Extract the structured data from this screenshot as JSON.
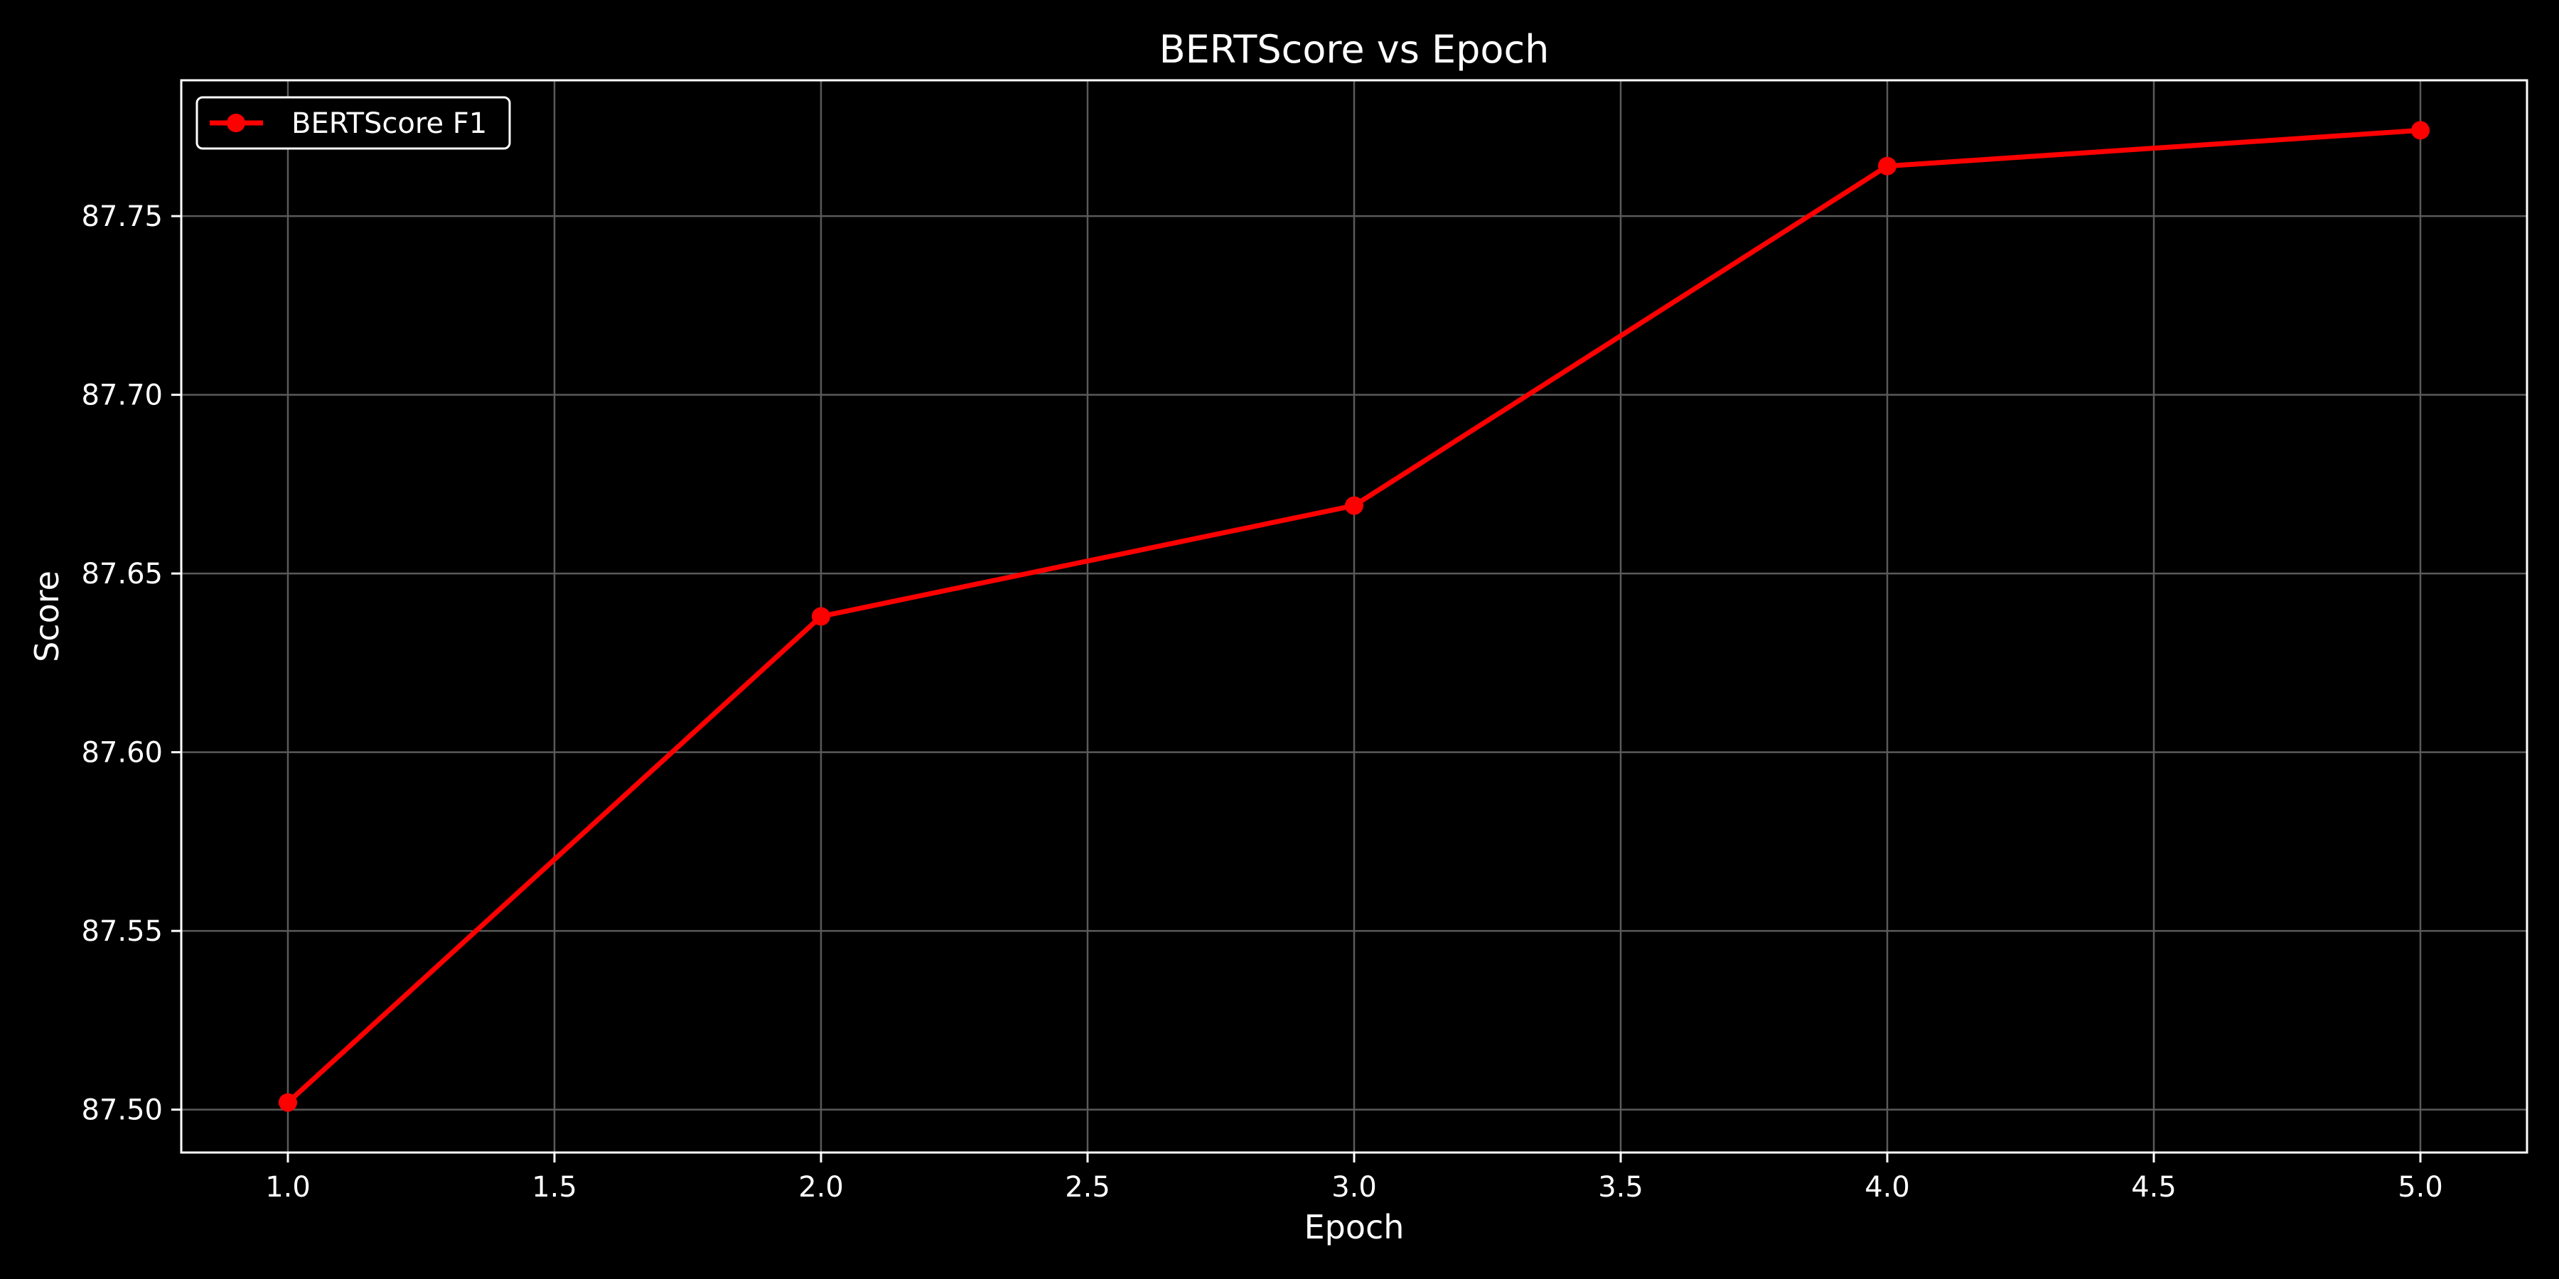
{
  "chart_data": {
    "type": "line",
    "title": "BERTScore vs Epoch",
    "xlabel": "Epoch",
    "ylabel": "Score",
    "xlim": [
      0.8,
      5.2
    ],
    "ylim": [
      87.488,
      87.788
    ],
    "x_ticks": [
      1.0,
      1.5,
      2.0,
      2.5,
      3.0,
      3.5,
      4.0,
      4.5,
      5.0
    ],
    "x_tick_labels": [
      "1.0",
      "1.5",
      "2.0",
      "2.5",
      "3.0",
      "3.5",
      "4.0",
      "4.5",
      "5.0"
    ],
    "y_ticks": [
      87.5,
      87.55,
      87.6,
      87.65,
      87.7,
      87.75
    ],
    "y_tick_labels": [
      "87.50",
      "87.55",
      "87.60",
      "87.65",
      "87.70",
      "87.75"
    ],
    "grid": true,
    "legend_position": "top-left",
    "series": [
      {
        "name": "BERTScore F1",
        "color": "#ff0000",
        "marker": "circle",
        "x": [
          1,
          2,
          3,
          4,
          5
        ],
        "y": [
          87.502,
          87.638,
          87.669,
          87.764,
          87.774
        ]
      }
    ]
  },
  "colors": {
    "background": "#000000",
    "axes": "#ffffff",
    "grid": "#5a5a5a",
    "text": "#ffffff"
  }
}
